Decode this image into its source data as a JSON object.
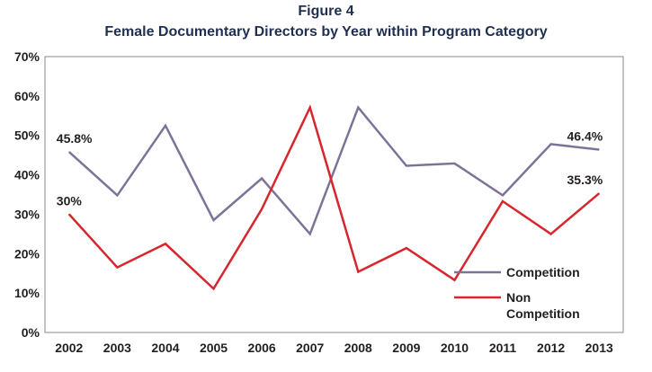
{
  "figure": {
    "label": "Figure 4",
    "title": "Female Documentary Directors by Year within Program Category"
  },
  "chart_data": {
    "type": "line",
    "title": "Female Documentary Directors by Year within Program Category",
    "xlabel": "",
    "ylabel": "",
    "categories": [
      "2002",
      "2003",
      "2004",
      "2005",
      "2006",
      "2007",
      "2008",
      "2009",
      "2010",
      "2011",
      "2012",
      "2013"
    ],
    "y_ticks": [
      "0%",
      "10%",
      "20%",
      "30%",
      "40%",
      "50%",
      "60%",
      "70%"
    ],
    "ylim": [
      0,
      70
    ],
    "grid": false,
    "legend_position": "bottom-right",
    "series": [
      {
        "name": "Competition",
        "color": "#7d7399",
        "values": [
          45.8,
          34.8,
          52.5,
          28.5,
          39.1,
          25.0,
          57.1,
          42.3,
          42.9,
          34.8,
          47.8,
          46.4
        ],
        "data_labels": [
          {
            "index": 0,
            "text": "45.8%"
          },
          {
            "index": 11,
            "text": "46.4%"
          }
        ]
      },
      {
        "name": "Non Competition",
        "legend_lines": [
          "Non",
          "Competition"
        ],
        "color": "#d7262d",
        "values": [
          30.0,
          16.5,
          22.5,
          11.1,
          31.3,
          57.1,
          15.4,
          21.4,
          13.3,
          33.3,
          25.0,
          35.3
        ],
        "data_labels": [
          {
            "index": 0,
            "text": "30%"
          },
          {
            "index": 11,
            "text": "35.3%"
          }
        ]
      }
    ]
  }
}
